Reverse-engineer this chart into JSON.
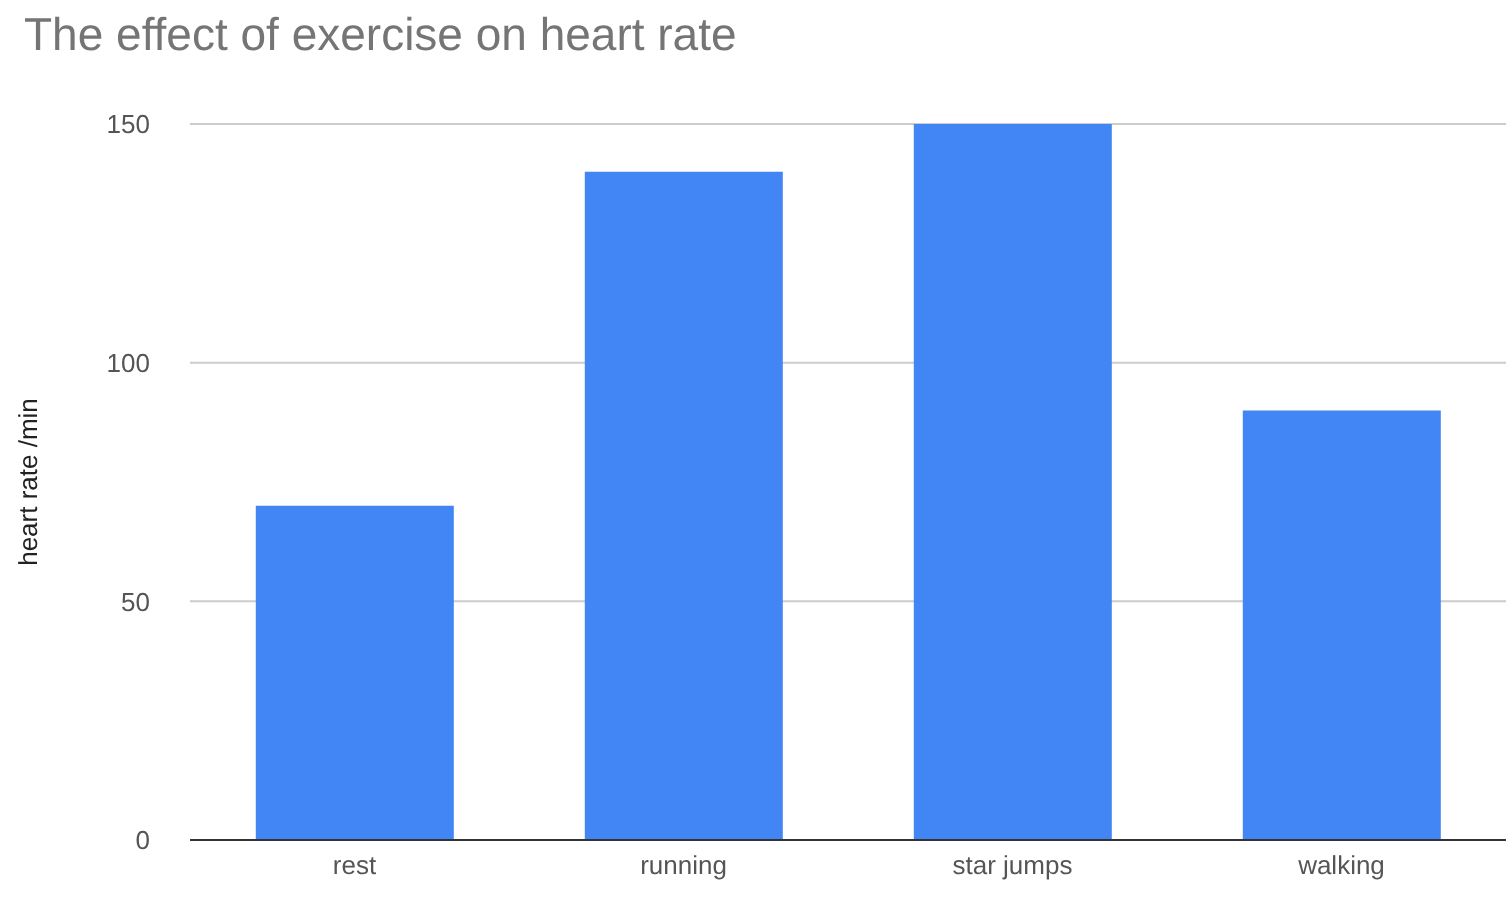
{
  "chart_data": {
    "type": "bar",
    "title": "The effect of exercise on heart rate",
    "ylabel": "heart rate /min",
    "categories": [
      "rest",
      "running",
      "star jumps",
      "walking"
    ],
    "values": [
      70,
      140,
      150,
      90
    ],
    "color": "#4285f4",
    "ylim": [
      0,
      150
    ],
    "yticks": [
      0,
      50,
      100,
      150
    ],
    "grid": "y"
  }
}
